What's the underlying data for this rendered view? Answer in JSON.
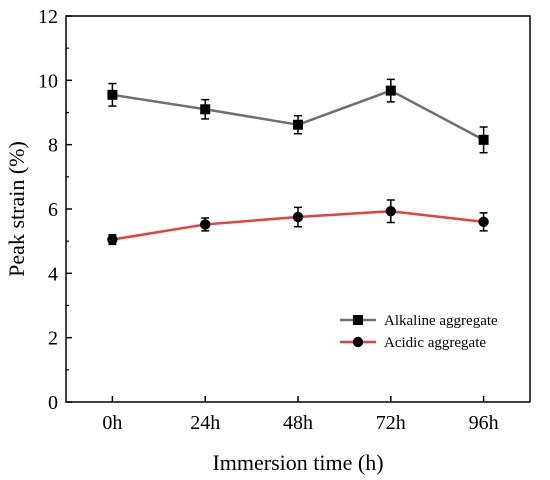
{
  "chart_data": {
    "type": "line",
    "title": "",
    "xlabel": "Immersion time (h)",
    "ylabel": "Peak strain (%)",
    "categories": [
      "0h",
      "24h",
      "48h",
      "72h",
      "96h"
    ],
    "ylim": [
      0,
      12
    ],
    "yticks": [
      0,
      2,
      4,
      6,
      8,
      10,
      12
    ],
    "grid": false,
    "legend_position": "bottom-right",
    "series": [
      {
        "name": "Alkaline aggregate",
        "marker": "square",
        "line_color": "#707070",
        "marker_color": "#000000",
        "values": [
          9.55,
          9.1,
          8.62,
          9.68,
          8.15
        ],
        "errors": [
          0.35,
          0.3,
          0.28,
          0.35,
          0.4
        ]
      },
      {
        "name": "Acidic aggregate",
        "marker": "circle",
        "line_color": "#e8403a",
        "marker_color": "#000000",
        "values": [
          5.05,
          5.52,
          5.75,
          5.93,
          5.6
        ],
        "errors": [
          0.15,
          0.2,
          0.3,
          0.35,
          0.28
        ]
      }
    ]
  }
}
